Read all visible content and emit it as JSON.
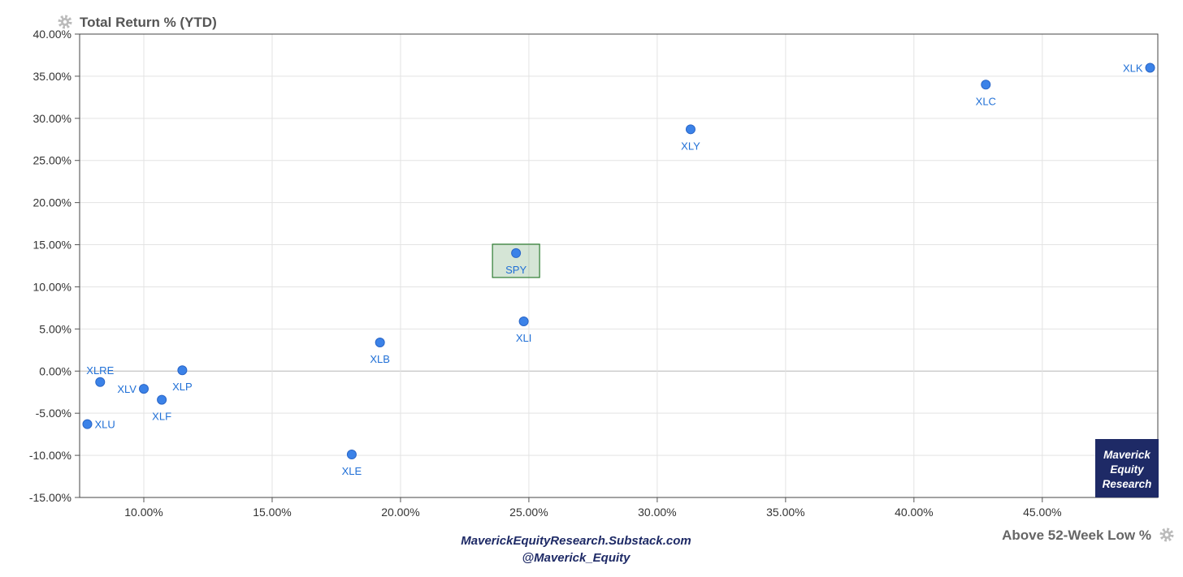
{
  "chart_data": {
    "type": "scatter",
    "title": "Total Return % (YTD)",
    "xlabel": "Above 52-Week Low %",
    "ylabel": "",
    "xlim": [
      7.5,
      49.5
    ],
    "ylim": [
      -15,
      40
    ],
    "x_ticks": [
      10,
      15,
      20,
      25,
      30,
      35,
      40,
      45
    ],
    "x_tick_labels": [
      "10.00%",
      "15.00%",
      "20.00%",
      "25.00%",
      "30.00%",
      "35.00%",
      "40.00%",
      "45.00%"
    ],
    "y_ticks": [
      40,
      35,
      30,
      25,
      20,
      15,
      10,
      5,
      0,
      -5,
      -10,
      -15
    ],
    "y_tick_labels": [
      "40.00%",
      "35.00%",
      "30.00%",
      "25.00%",
      "20.00%",
      "15.00%",
      "10.00%",
      "5.00%",
      "0.00%",
      "-5.00%",
      "-10.00%",
      "-15.00%"
    ],
    "grid": true,
    "point_color": "#3b82e8",
    "label_color": "#1f6fd6",
    "points": [
      {
        "label": "XLK",
        "x": 49.2,
        "y": 36.0,
        "label_pos": "left"
      },
      {
        "label": "XLC",
        "x": 42.8,
        "y": 34.0,
        "label_pos": "below"
      },
      {
        "label": "XLY",
        "x": 31.3,
        "y": 28.7,
        "label_pos": "below"
      },
      {
        "label": "SPY",
        "x": 24.5,
        "y": 14.0,
        "label_pos": "below",
        "highlight": true
      },
      {
        "label": "XLI",
        "x": 24.8,
        "y": 5.9,
        "label_pos": "below"
      },
      {
        "label": "XLB",
        "x": 19.2,
        "y": 3.4,
        "label_pos": "below"
      },
      {
        "label": "XLRE",
        "x": 8.3,
        "y": -1.3,
        "label_pos": "above"
      },
      {
        "label": "XLP",
        "x": 11.5,
        "y": 0.1,
        "label_pos": "below"
      },
      {
        "label": "XLV",
        "x": 10.0,
        "y": -2.1,
        "label_pos": "left"
      },
      {
        "label": "XLF",
        "x": 10.7,
        "y": -3.4,
        "label_pos": "below"
      },
      {
        "label": "XLU",
        "x": 7.8,
        "y": -6.3,
        "label_pos": "right"
      },
      {
        "label": "XLE",
        "x": 18.1,
        "y": -9.9,
        "label_pos": "below"
      }
    ],
    "highlight_color": "#2e7d32"
  },
  "footer": {
    "line1": "MaverickEquityResearch.Substack.com",
    "line2": "@Maverick_Equity"
  },
  "logo": {
    "lines": [
      "Maverick",
      "Equity",
      "Research"
    ],
    "color": "#1e2a66"
  },
  "icons": {
    "title_icon": "gear-icon",
    "xlabel_icon": "gear-icon"
  }
}
